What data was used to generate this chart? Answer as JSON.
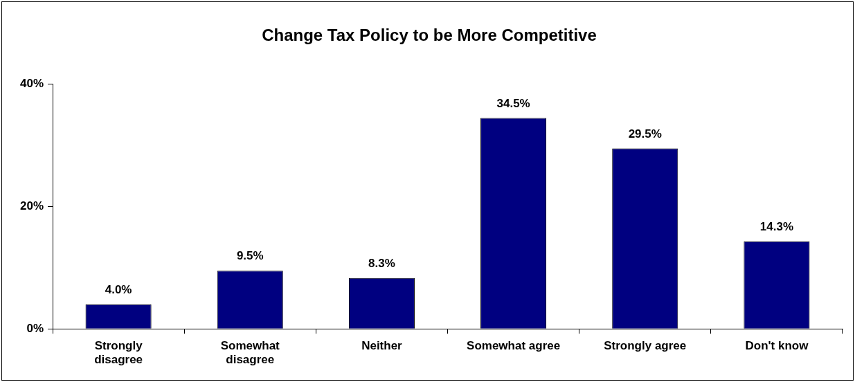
{
  "chart_data": {
    "type": "bar",
    "title": "Change Tax Policy to be More Competitive",
    "categories": [
      "Strongly disagree",
      "Somewhat disagree",
      "Neither",
      "Somewhat agree",
      "Strongly agree",
      "Don't know"
    ],
    "values": [
      4.0,
      9.5,
      8.3,
      34.5,
      29.5,
      14.3
    ],
    "value_labels": [
      "4.0%",
      "9.5%",
      "8.3%",
      "34.5%",
      "29.5%",
      "14.3%"
    ],
    "color": "#000080",
    "ylim": [
      0,
      40
    ],
    "yticks": [
      {
        "value": 0,
        "label": "0%"
      },
      {
        "value": 20,
        "label": "20%"
      },
      {
        "value": 40,
        "label": "40%"
      }
    ],
    "grid": false,
    "legend": false
  }
}
